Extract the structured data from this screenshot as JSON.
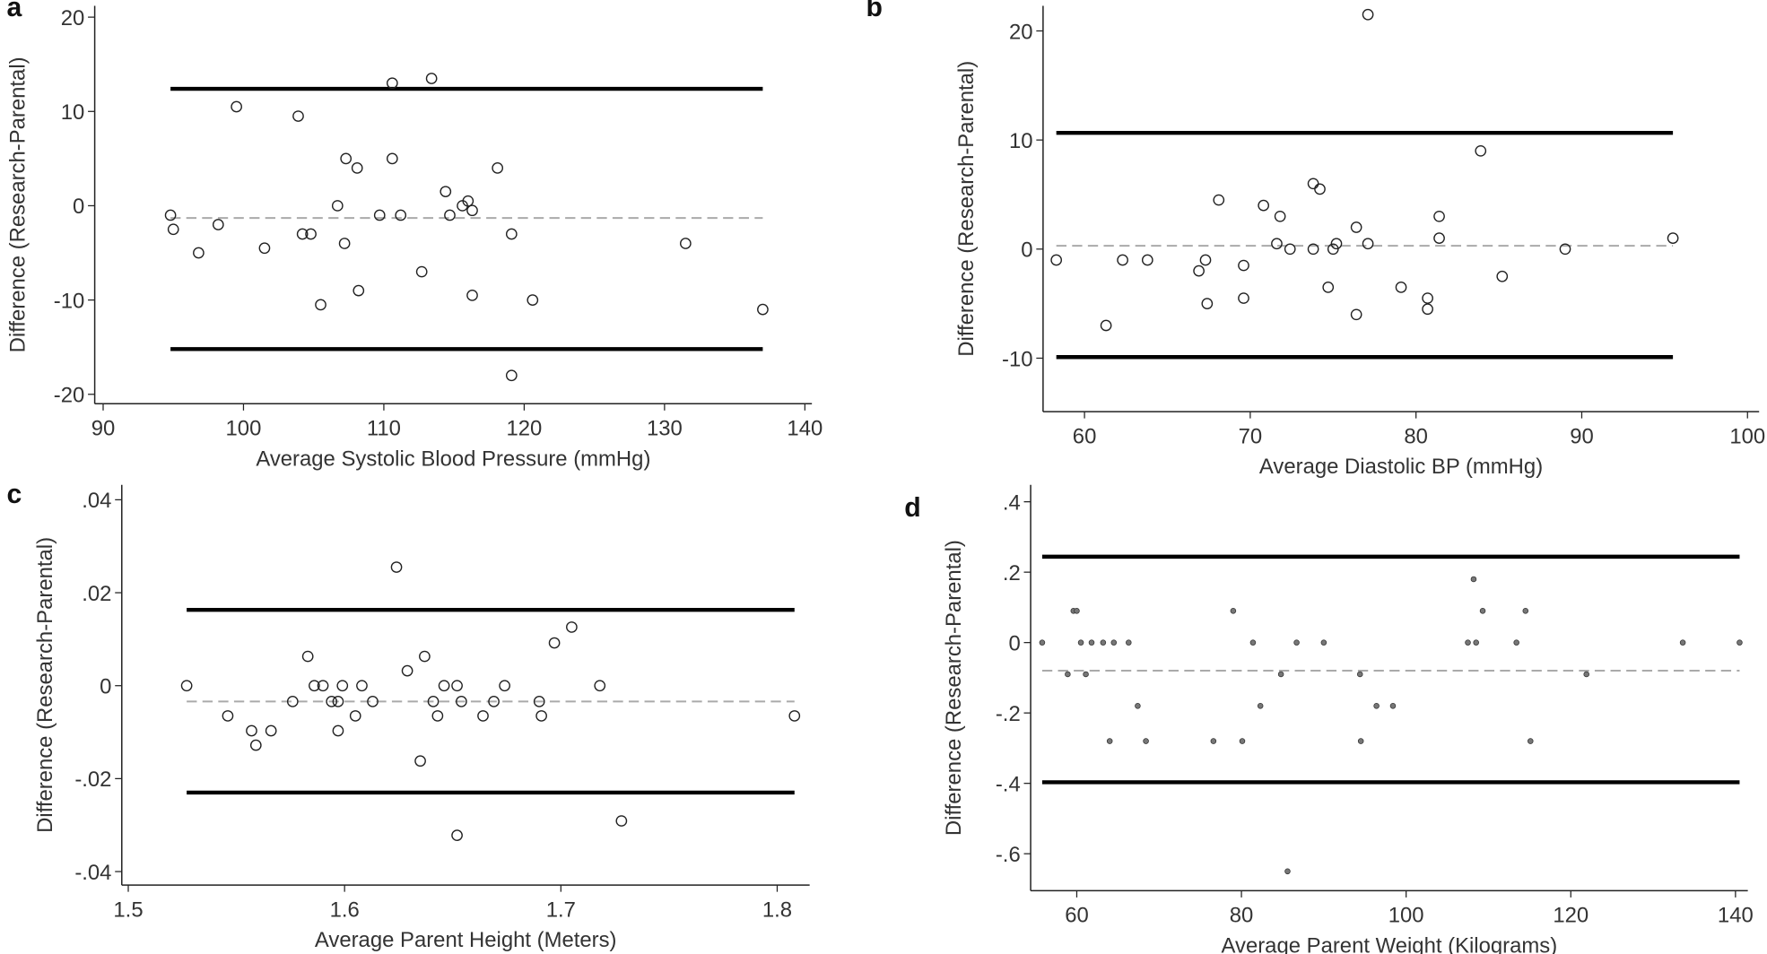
{
  "chart_data": [
    {
      "type": "scatter",
      "panel": "a",
      "x_label": "Average Systolic Blood Pressure (mmHg)",
      "y_label": "Difference (Research-Parental)",
      "marker": "open-circle",
      "x": [
        94.8,
        95.0,
        96.8,
        98.2,
        99.5,
        101.5,
        103.9,
        104.2,
        104.8,
        105.5,
        106.7,
        107.2,
        107.3,
        108.1,
        108.2,
        109.7,
        110.6,
        110.6,
        111.2,
        112.7,
        113.4,
        114.4,
        114.7,
        115.6,
        116.0,
        116.3,
        116.3,
        118.1,
        119.1,
        119.1,
        120.6,
        131.5,
        137.0
      ],
      "values": [
        -1,
        -2.5,
        -5,
        -2,
        10.5,
        -4.5,
        9.5,
        -3,
        -3,
        -10.5,
        0,
        -4,
        5,
        4,
        -9,
        -1,
        5,
        13,
        -1,
        -7,
        13.5,
        1.5,
        -1,
        0,
        0.5,
        -0.5,
        -9.5,
        4,
        -3,
        -18,
        -10,
        -4,
        -11
      ],
      "mean_difference": -1.3,
      "upper_limit": 12.4,
      "lower_limit": -15.2,
      "xlim": [
        89.4,
        140.5
      ],
      "ylim": [
        -21,
        21.2
      ],
      "xticks": [
        90,
        100,
        110,
        120,
        130,
        140
      ],
      "yticks": [
        -20,
        -10,
        0,
        10,
        20
      ]
    },
    {
      "type": "scatter",
      "panel": "b",
      "x_label": "Average Diastolic BP (mmHg)",
      "y_label": "Difference (Research-Parental)",
      "marker": "open-circle",
      "x": [
        58.3,
        61.3,
        62.3,
        63.8,
        66.9,
        67.3,
        67.4,
        68.1,
        69.6,
        69.6,
        70.8,
        71.6,
        71.8,
        72.4,
        73.8,
        73.8,
        74.2,
        74.7,
        75.0,
        75.2,
        76.4,
        76.4,
        77.1,
        77.1,
        79.1,
        80.7,
        80.7,
        81.4,
        81.4,
        83.9,
        85.2,
        89.0,
        95.5
      ],
      "values": [
        -1,
        -7,
        -1,
        -1,
        -2,
        -1,
        -5,
        4.5,
        -1.5,
        -4.5,
        4,
        0.5,
        3,
        0,
        0,
        6,
        5.5,
        -3.5,
        0,
        0.5,
        2,
        -6,
        0.5,
        21.5,
        -3.5,
        -4.5,
        -5.5,
        3,
        1,
        9,
        -2.5,
        0,
        1
      ],
      "mean_difference": 0.3,
      "upper_limit": 10.65,
      "lower_limit": -9.9,
      "xlim": [
        57.5,
        100.7
      ],
      "ylim": [
        -14.9,
        22.3
      ],
      "xticks": [
        60,
        70,
        80,
        90,
        100
      ],
      "yticks": [
        -10,
        0,
        10,
        20
      ]
    },
    {
      "type": "scatter",
      "panel": "c",
      "x_label": "Average Parent Height (Meters)",
      "y_label": "Difference (Research-Parental)",
      "marker": "open-circle",
      "x": [
        1.527,
        1.546,
        1.557,
        1.559,
        1.566,
        1.576,
        1.583,
        1.586,
        1.59,
        1.594,
        1.597,
        1.597,
        1.599,
        1.605,
        1.608,
        1.613,
        1.624,
        1.629,
        1.635,
        1.637,
        1.641,
        1.643,
        1.646,
        1.652,
        1.652,
        1.654,
        1.664,
        1.669,
        1.674,
        1.69,
        1.691,
        1.697,
        1.705,
        1.718,
        1.728,
        1.808
      ],
      "values": [
        0,
        -0.0065,
        -0.0097,
        -0.0128,
        -0.0097,
        -0.0034,
        0.0063,
        0,
        0,
        -0.0034,
        -0.0034,
        -0.0097,
        0,
        -0.0065,
        0,
        -0.0034,
        0.0255,
        0.0032,
        -0.0162,
        0.0063,
        -0.0034,
        -0.0065,
        0,
        0,
        -0.0322,
        -0.0034,
        -0.0065,
        -0.0034,
        0,
        -0.0034,
        -0.0065,
        0.0092,
        0.0126,
        0,
        -0.0291,
        -0.0065
      ],
      "mean_difference": -0.0034,
      "upper_limit": 0.0163,
      "lower_limit": -0.023,
      "xlim": [
        1.497,
        1.815
      ],
      "ylim": [
        -0.0429,
        0.0432
      ],
      "xticks": [
        1.5,
        1.6,
        1.7,
        1.8
      ],
      "yticks": [
        {
          "value": -0.04,
          "label": "-.04"
        },
        {
          "value": -0.02,
          "label": "-.02"
        },
        0,
        {
          "value": 0.02,
          "label": ".02"
        },
        {
          "value": 0.04,
          "label": ".04"
        }
      ]
    },
    {
      "type": "scatter",
      "panel": "d",
      "x_label": "Average Parent Weight (Kilograms)",
      "y_label": "Difference (Research-Parental)",
      "marker": "dot",
      "x": [
        55.8,
        58.9,
        59.6,
        60,
        60.5,
        61.1,
        61.8,
        63.2,
        64.0,
        64.5,
        66.3,
        67.4,
        68.4,
        76.6,
        79.0,
        80.1,
        81.4,
        82.3,
        84.8,
        85.6,
        86.7,
        90,
        94.4,
        94.5,
        96.4,
        98.4,
        107.5,
        108.2,
        108.5,
        109.3,
        113.4,
        114.5,
        115.1,
        121.9,
        133.6,
        140.5
      ],
      "values": [
        0,
        -0.09,
        0.09,
        0.09,
        0,
        -0.09,
        0,
        0,
        -0.28,
        0,
        0,
        -0.18,
        -0.28,
        -0.28,
        0.09,
        -0.28,
        0,
        -0.18,
        -0.09,
        -0.65,
        0,
        0,
        -0.09,
        -0.28,
        -0.18,
        -0.18,
        0,
        0.18,
        0,
        0.09,
        0,
        0.09,
        -0.28,
        -0.09,
        0,
        0
      ],
      "mean_difference": -0.08,
      "upper_limit": 0.244,
      "lower_limit": -0.397,
      "xlim": [
        54.4,
        141.5
      ],
      "ylim": [
        -0.705,
        0.448
      ],
      "xticks": [
        60,
        80,
        100,
        120,
        140
      ],
      "yticks": [
        {
          "value": -0.6,
          "label": "-.6"
        },
        {
          "value": -0.4,
          "label": "-.4"
        },
        {
          "value": -0.2,
          "label": "-.2"
        },
        0,
        {
          "value": 0.2,
          "label": ".2"
        },
        {
          "value": 0.4,
          "label": ".4"
        }
      ]
    }
  ]
}
